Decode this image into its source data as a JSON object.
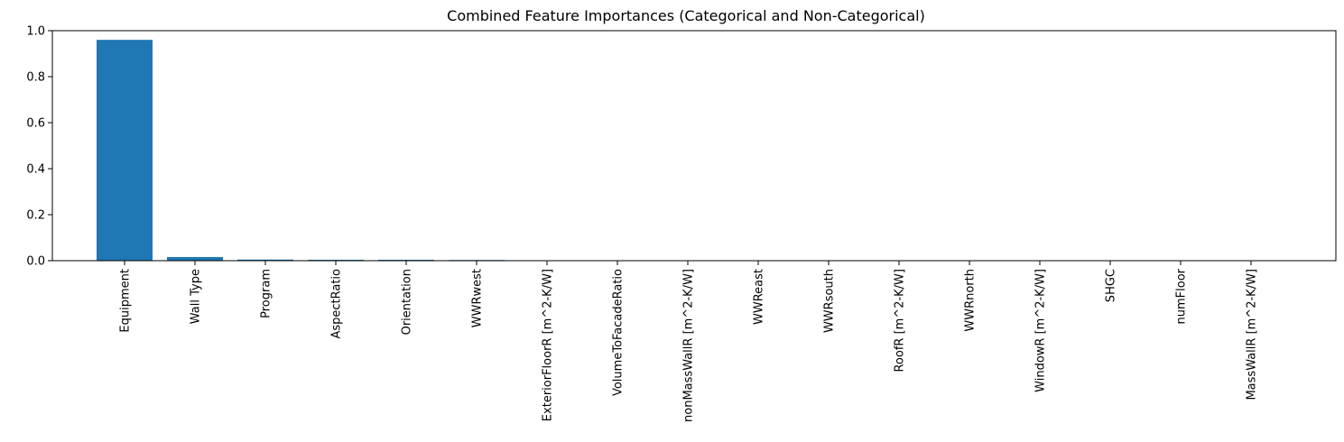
{
  "chart_data": {
    "type": "bar",
    "title": "Combined Feature Importances (Categorical and Non-Categorical)",
    "xlabel": "",
    "ylabel": "",
    "categories": [
      "Equipment",
      "Wall Type",
      "Program",
      "AspectRatio",
      "Orientation",
      "WWRwest",
      "ExteriorFloorR [m^2-K/W]",
      "VolumeToFacadeRatio",
      "nonMassWallR [m^2-K/W]",
      "WWReast",
      "WWRsouth",
      "RoofR [m^2-K/W]",
      "WWRnorth",
      "WindowR [m^2-K/W]",
      "SHGC",
      "numFloor",
      "MassWallR [m^2-K/W]"
    ],
    "values": [
      0.96,
      0.016,
      0.005,
      0.004,
      0.004,
      0.003,
      0.001,
      0.0008,
      0.0006,
      0.0005,
      0.0004,
      0.0003,
      0.0003,
      0.0002,
      0.0001,
      0.0001,
      5e-05
    ],
    "ylim": [
      0,
      1.0
    ],
    "yticks": [
      "0.0",
      "0.2",
      "0.4",
      "0.6",
      "0.8",
      "1.0"
    ],
    "ytick_values": [
      0,
      0.2,
      0.4,
      0.6,
      0.8,
      1.0
    ],
    "bar_color": "#1f77b4",
    "grid": false,
    "legend": "none"
  }
}
